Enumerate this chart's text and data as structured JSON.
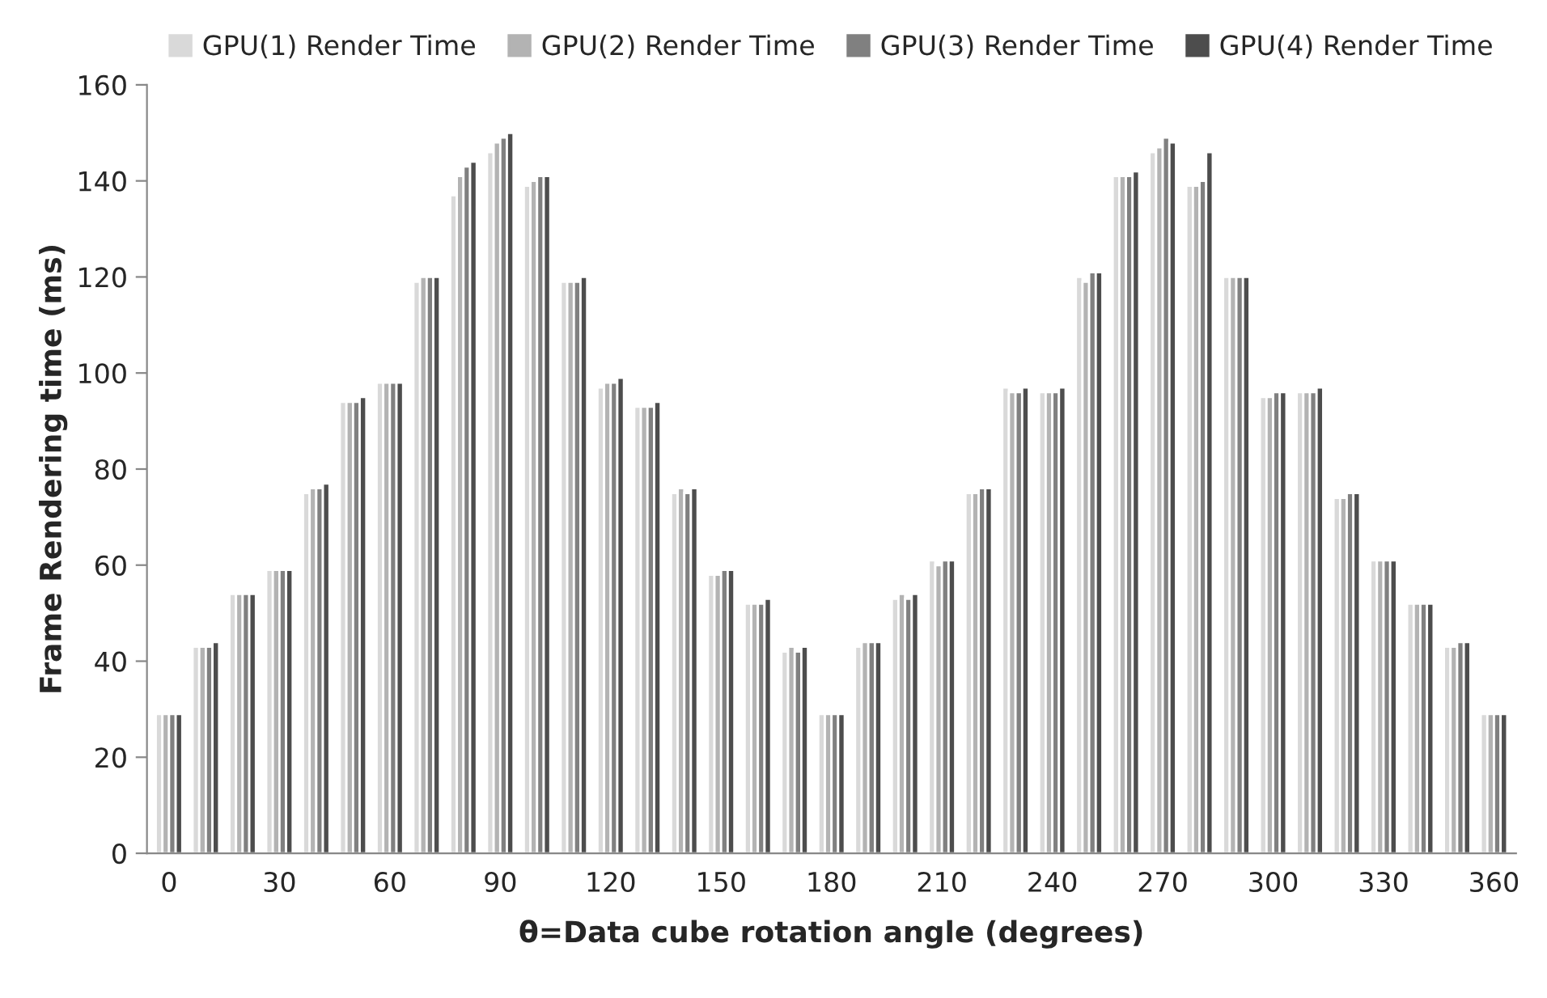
{
  "chart_data": {
    "type": "bar",
    "xlabel": "θ=Data cube rotation angle (degrees)",
    "ylabel": "Frame Rendering time (ms)",
    "categories": [
      "0",
      null,
      null,
      "30",
      null,
      null,
      "60",
      null,
      null,
      "90",
      null,
      null,
      "120",
      null,
      null,
      "150",
      null,
      null,
      "180",
      null,
      null,
      "210",
      null,
      null,
      "240",
      null,
      null,
      "270",
      null,
      null,
      "300",
      null,
      null,
      "330",
      null,
      null,
      "360"
    ],
    "series": [
      {
        "name": "GPU(1) Render Time",
        "color": "#d9d9d9",
        "values": [
          29,
          43,
          54,
          59,
          75,
          94,
          98,
          119,
          137,
          146,
          139,
          119,
          97,
          93,
          75,
          58,
          52,
          42,
          29,
          43,
          53,
          61,
          75,
          97,
          96,
          120,
          141,
          146,
          139,
          120,
          95,
          96,
          74,
          61,
          52,
          43,
          29
        ]
      },
      {
        "name": "GPU(2) Render Time",
        "color": "#b3b3b3",
        "values": [
          29,
          43,
          54,
          59,
          76,
          94,
          98,
          120,
          141,
          148,
          140,
          119,
          98,
          93,
          76,
          58,
          52,
          43,
          29,
          44,
          54,
          60,
          75,
          96,
          96,
          119,
          141,
          147,
          139,
          120,
          95,
          96,
          74,
          61,
          52,
          43,
          29
        ]
      },
      {
        "name": "GPU(3) Render Time",
        "color": "#808080",
        "values": [
          29,
          43,
          54,
          59,
          76,
          94,
          98,
          120,
          143,
          149,
          141,
          119,
          98,
          93,
          75,
          59,
          52,
          42,
          29,
          44,
          53,
          61,
          76,
          96,
          96,
          121,
          141,
          149,
          140,
          120,
          96,
          96,
          75,
          61,
          52,
          44,
          29
        ]
      },
      {
        "name": "GPU(4) Render Time",
        "color": "#4d4d4d",
        "values": [
          29,
          44,
          54,
          59,
          77,
          95,
          98,
          120,
          144,
          150,
          141,
          120,
          99,
          94,
          76,
          59,
          53,
          43,
          29,
          44,
          54,
          61,
          76,
          97,
          97,
          121,
          142,
          148,
          146,
          120,
          96,
          97,
          75,
          61,
          52,
          44,
          29
        ]
      }
    ],
    "ylim": [
      0,
      160
    ],
    "yticks": [
      0,
      20,
      40,
      60,
      80,
      100,
      120,
      140,
      160
    ],
    "legend": "top",
    "grid": false
  }
}
